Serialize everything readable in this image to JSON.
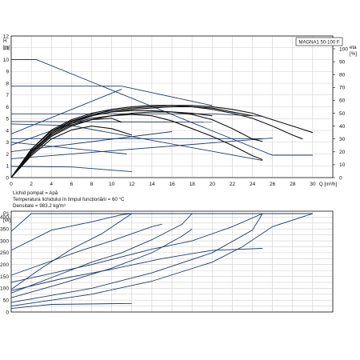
{
  "chart_data": [
    {
      "type": "line",
      "panel": "head-and-efficiency",
      "title_box": "MAGNA1 50-100 F",
      "left_axis": {
        "label_top": "H",
        "label_unit": "[m]",
        "range": [
          0,
          12
        ],
        "ticks": [
          "0",
          "1",
          "2",
          "3",
          "4",
          "5",
          "6",
          "7",
          "8",
          "9",
          "10",
          "11",
          "12"
        ]
      },
      "right_axis": {
        "label_top": "eta",
        "label_unit": "[%]",
        "range": [
          0,
          100
        ],
        "ticks": [
          "0",
          "10",
          "20",
          "30",
          "40",
          "50",
          "60",
          "70",
          "80",
          "90",
          "100"
        ]
      },
      "x_axis": {
        "label": "Q [m³/h]",
        "range": [
          0,
          32
        ],
        "ticks": [
          "0",
          "2",
          "4",
          "6",
          "8",
          "10",
          "12",
          "14",
          "16",
          "18",
          "20",
          "22",
          "24",
          "26",
          "28",
          "30"
        ]
      },
      "annotations": [
        "Lichid pompat = Apă",
        "Temperatura lichidului în timpul funcționării = 60 °C",
        "Densitate = 983.2 kg/m³"
      ],
      "series": [
        {
          "role": "head-control-curve",
          "units": "m",
          "points": [
            [
              0,
              10
            ],
            [
              2.5,
              10
            ],
            [
              26,
              1.9
            ],
            [
              30,
              1.9
            ]
          ]
        },
        {
          "role": "head-curve",
          "units": "m",
          "points": [
            [
              0,
              7.75
            ],
            [
              11,
              7.75
            ],
            [
              20,
              6.1
            ]
          ]
        },
        {
          "role": "head-curve",
          "units": "m",
          "points": [
            [
              0,
              5.4
            ],
            [
              20,
              5.4
            ],
            [
              25,
              5.2
            ]
          ]
        },
        {
          "role": "head-curve",
          "units": "m",
          "points": [
            [
              0,
              4.75
            ],
            [
              20,
              4.7
            ]
          ]
        },
        {
          "role": "head-curve",
          "units": "m",
          "points": [
            [
              0,
              4.55
            ],
            [
              6,
              4.4
            ],
            [
              25,
              1.45
            ]
          ]
        },
        {
          "role": "head-curve",
          "units": "m",
          "points": [
            [
              0,
              3.3
            ],
            [
              25,
              3.3
            ]
          ]
        },
        {
          "role": "head-curve",
          "units": "m",
          "points": [
            [
              0,
              0.95
            ],
            [
              6,
              0.9
            ],
            [
              12,
              0.5
            ]
          ]
        },
        {
          "role": "control-line",
          "units": "m",
          "points": [
            [
              0,
              3.7
            ],
            [
              11,
              7.5
            ]
          ]
        },
        {
          "role": "control-line",
          "units": "m",
          "points": [
            [
              0,
              2.75
            ],
            [
              10,
              5.8
            ]
          ]
        },
        {
          "role": "control-line",
          "units": "m",
          "points": [
            [
              0,
              2.2
            ],
            [
              16,
              3.9
            ]
          ]
        },
        {
          "role": "control-line",
          "units": "m",
          "points": [
            [
              0,
              1.6
            ],
            [
              26,
              3.35
            ]
          ]
        },
        {
          "role": "control-line",
          "units": "m",
          "points": [
            [
              0,
              3.0
            ],
            [
              11.5,
              2.0
            ]
          ]
        },
        {
          "role": "efficiency-curve",
          "units": "%",
          "points": [
            [
              0,
              0
            ],
            [
              2,
              18
            ],
            [
              4,
              32
            ],
            [
              6,
              40
            ],
            [
              8,
              45
            ],
            [
              10,
              48
            ],
            [
              12,
              50
            ],
            [
              14,
              51
            ],
            [
              16,
              51
            ],
            [
              18,
              49
            ],
            [
              20,
              45
            ],
            [
              22,
              38
            ],
            [
              24,
              30
            ],
            [
              25,
              28
            ]
          ]
        },
        {
          "role": "efficiency-curve",
          "units": "%",
          "points": [
            [
              0,
              0
            ],
            [
              2,
              20
            ],
            [
              4,
              34
            ],
            [
              6,
              42
            ],
            [
              8,
              46
            ],
            [
              10,
              48
            ],
            [
              12,
              49
            ],
            [
              14,
              48
            ],
            [
              16,
              44
            ],
            [
              18,
              38
            ],
            [
              20,
              32
            ],
            [
              22,
              25
            ],
            [
              24,
              17
            ],
            [
              25,
              14
            ]
          ]
        },
        {
          "role": "efficiency-curve",
          "units": "%",
          "points": [
            [
              0,
              0
            ],
            [
              2,
              22
            ],
            [
              4,
              36
            ],
            [
              6,
              44
            ],
            [
              8,
              48
            ],
            [
              10,
              51
            ],
            [
              12,
              52
            ],
            [
              14,
              52
            ],
            [
              16,
              51
            ],
            [
              18,
              50
            ],
            [
              20,
              48
            ]
          ]
        },
        {
          "role": "efficiency-curve",
          "units": "%",
          "points": [
            [
              0,
              0
            ],
            [
              2,
              19
            ],
            [
              4,
              33
            ],
            [
              6,
              41
            ],
            [
              8,
              45
            ],
            [
              10,
              46
            ],
            [
              11,
              43
            ]
          ]
        },
        {
          "role": "efficiency-curve",
          "units": "%",
          "points": [
            [
              0,
              0
            ],
            [
              2,
              17
            ],
            [
              4,
              30
            ],
            [
              6,
              37
            ],
            [
              8,
              40
            ],
            [
              10,
              38
            ],
            [
              12,
              33
            ]
          ]
        },
        {
          "role": "efficiency-curve",
          "units": "%",
          "points": [
            [
              0,
              0
            ],
            [
              2,
              21
            ],
            [
              4,
              34
            ],
            [
              6,
              43
            ],
            [
              8,
              48
            ],
            [
              10,
              51
            ],
            [
              12,
              53
            ],
            [
              14,
              54
            ],
            [
              16,
              55
            ],
            [
              18,
              55
            ],
            [
              20,
              54
            ],
            [
              22,
              51
            ],
            [
              24,
              48
            ]
          ]
        },
        {
          "role": "efficiency-curve",
          "units": "%",
          "points": [
            [
              0,
              0
            ],
            [
              2,
              20
            ],
            [
              4,
              35
            ],
            [
              6,
              44
            ],
            [
              8,
              49
            ],
            [
              10,
              52
            ],
            [
              12,
              54
            ],
            [
              14,
              55
            ],
            [
              16,
              56
            ],
            [
              18,
              56
            ],
            [
              20,
              55
            ],
            [
              22,
              53
            ],
            [
              24,
              50
            ],
            [
              26,
              45
            ],
            [
              28,
              40
            ],
            [
              30,
              35
            ]
          ]
        },
        {
          "role": "efficiency-curve",
          "units": "%",
          "points": [
            [
              0,
              0
            ],
            [
              2,
              22
            ],
            [
              4,
              37
            ],
            [
              6,
              45
            ],
            [
              8,
              50
            ],
            [
              10,
              53
            ],
            [
              12,
              55
            ],
            [
              14,
              56
            ],
            [
              16,
              56
            ],
            [
              18,
              55
            ],
            [
              20,
              53
            ],
            [
              22,
              50
            ],
            [
              24,
              46
            ],
            [
              26,
              40
            ],
            [
              28,
              33
            ],
            [
              29,
              30
            ]
          ]
        }
      ]
    },
    {
      "type": "line",
      "panel": "power",
      "left_axis": {
        "label_top": "P1",
        "label_unit": "[W]",
        "range": [
          0,
          425
        ],
        "ticks": [
          "0",
          "50",
          "100",
          "150",
          "200",
          "250",
          "300",
          "350",
          "400"
        ]
      },
      "x_axis": {
        "range": [
          0,
          32
        ]
      },
      "series": [
        {
          "role": "power-curve",
          "units": "W",
          "points": [
            [
              0,
              260
            ],
            [
              4,
              345
            ],
            [
              8,
              380
            ],
            [
              11,
              410
            ],
            [
              12,
              415
            ],
            [
              30,
              415
            ]
          ]
        },
        {
          "role": "power-curve",
          "units": "W",
          "points": [
            [
              0,
              340
            ],
            [
              2,
              415
            ],
            [
              30,
              415
            ]
          ]
        },
        {
          "role": "power-curve",
          "units": "W",
          "points": [
            [
              0,
              95
            ],
            [
              3,
              185
            ],
            [
              6,
              265
            ],
            [
              9,
              330
            ],
            [
              12,
              415
            ]
          ]
        },
        {
          "role": "power-curve",
          "units": "W",
          "points": [
            [
              0,
              80
            ],
            [
              4,
              145
            ],
            [
              8,
              210
            ],
            [
              11,
              250
            ],
            [
              14,
              305
            ],
            [
              17,
              370
            ],
            [
              18,
              415
            ]
          ]
        },
        {
          "role": "power-curve",
          "units": "W",
          "points": [
            [
              0,
              60
            ],
            [
              5,
              120
            ],
            [
              10,
              185
            ],
            [
              14,
              250
            ],
            [
              17,
              320
            ],
            [
              18,
              350
            ]
          ]
        },
        {
          "role": "power-curve",
          "units": "W",
          "points": [
            [
              0,
              90
            ],
            [
              5,
              140
            ],
            [
              10,
              180
            ],
            [
              15,
              225
            ],
            [
              20,
              260
            ],
            [
              25,
              268
            ]
          ]
        },
        {
          "role": "power-curve",
          "units": "W",
          "points": [
            [
              0,
              40
            ],
            [
              8,
              100
            ],
            [
              14,
              165
            ],
            [
              20,
              250
            ],
            [
              24,
              345
            ],
            [
              25,
              415
            ]
          ]
        },
        {
          "role": "power-curve",
          "units": "W",
          "points": [
            [
              0,
              25
            ],
            [
              8,
              75
            ],
            [
              14,
              130
            ],
            [
              20,
              210
            ],
            [
              23,
              275
            ],
            [
              26,
              360
            ],
            [
              30,
              415
            ]
          ]
        },
        {
          "role": "power-curve",
          "units": "W",
          "points": [
            [
              0,
              125
            ],
            [
              8,
              200
            ],
            [
              14,
              265
            ],
            [
              18,
              300
            ],
            [
              22,
              360
            ],
            [
              25,
              415
            ]
          ]
        },
        {
          "role": "power-curve",
          "units": "W",
          "points": [
            [
              0,
              155
            ],
            [
              7,
              260
            ],
            [
              10,
              300
            ],
            [
              12,
              330
            ],
            [
              14,
              360
            ],
            [
              15,
              370
            ]
          ]
        },
        {
          "role": "power-curve",
          "units": "W",
          "points": [
            [
              0,
              15
            ],
            [
              4,
              32
            ],
            [
              12,
              36
            ]
          ]
        }
      ]
    }
  ]
}
